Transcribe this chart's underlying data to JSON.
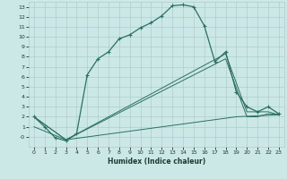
{
  "xlabel": "Humidex (Indice chaleur)",
  "bg_color": "#cce8e6",
  "grid_color": "#aacfcc",
  "line_color": "#2a7060",
  "xlim": [
    -0.5,
    23.5
  ],
  "ylim": [
    -1.0,
    13.5
  ],
  "xticks": [
    0,
    1,
    2,
    3,
    4,
    5,
    6,
    7,
    8,
    9,
    10,
    11,
    12,
    13,
    14,
    15,
    16,
    17,
    18,
    19,
    20,
    21,
    22,
    23
  ],
  "yticks": [
    0,
    1,
    2,
    3,
    4,
    5,
    6,
    7,
    8,
    9,
    10,
    11,
    12,
    13
  ],
  "ytick_labels": [
    "-0",
    "1",
    "2",
    "3",
    "4",
    "5",
    "6",
    "7",
    "8",
    "9",
    "10",
    "11",
    "12",
    "13"
  ],
  "curve1_x": [
    0,
    1,
    2,
    3,
    4,
    5,
    6,
    7,
    8,
    9,
    10,
    11,
    12,
    13,
    14,
    15,
    16,
    17,
    18,
    19,
    20,
    21,
    22,
    23
  ],
  "curve1_y": [
    2,
    1,
    -0.1,
    -0.4,
    0.3,
    6.2,
    7.8,
    8.5,
    9.8,
    10.2,
    10.9,
    11.4,
    12.1,
    13.1,
    13.2,
    13.0,
    11.1,
    7.5,
    8.5,
    4.5,
    3.0,
    2.5,
    3.0,
    2.3
  ],
  "curve2_x": [
    0,
    3,
    18,
    20,
    21,
    22,
    23
  ],
  "curve2_y": [
    2,
    -0.3,
    8.3,
    2.5,
    2.5,
    2.5,
    2.2
  ],
  "curve3_x": [
    0,
    3,
    18,
    20,
    21,
    22,
    23
  ],
  "curve3_y": [
    2,
    -0.3,
    7.8,
    2.0,
    2.0,
    2.3,
    2.2
  ],
  "curve4_x": [
    0,
    3,
    19,
    23
  ],
  "curve4_y": [
    1,
    -0.3,
    2.0,
    2.2
  ]
}
